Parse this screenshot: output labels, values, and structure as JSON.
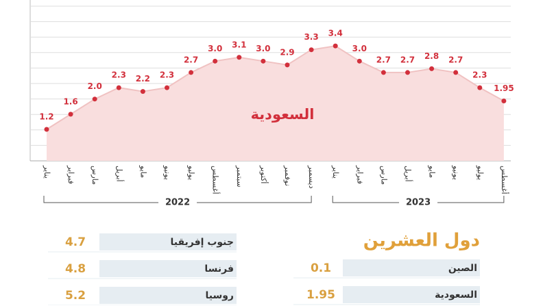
{
  "chart_data": {
    "type": "area",
    "series_name": "السعودية",
    "color": "#d2303c",
    "fill": "#f9dede",
    "line_color": "#f0c2c2",
    "ylim": [
      0.37,
      4.45
    ],
    "groups": [
      {
        "name": "2022",
        "categories": [
          "يناير",
          "فبراير",
          "مارس",
          "أبريل",
          "مايو",
          "يونيو",
          "يوليو",
          "أغسطس",
          "سبتمبر",
          "أكتوبر",
          "نوفمبر",
          "ديسمبر"
        ],
        "values": [
          1.2,
          1.6,
          2.0,
          2.3,
          2.2,
          2.3,
          2.7,
          3.0,
          3.1,
          3.0,
          2.9,
          3.3
        ],
        "value_labels": [
          "1.2",
          "1.6",
          "2.0",
          "2.3",
          "2.2",
          "2.3",
          "2.7",
          "3.0",
          "3.1",
          "3.0",
          "2.9",
          "3.3"
        ]
      },
      {
        "name": "2023",
        "categories": [
          "يناير",
          "فبراير",
          "مارس",
          "أبريل",
          "مايو",
          "يونيو",
          "يوليو",
          "أغسطس"
        ],
        "values": [
          3.4,
          3.0,
          2.7,
          2.7,
          2.8,
          2.7,
          2.3,
          1.95
        ],
        "value_labels": [
          "3.4",
          "3.0",
          "2.7",
          "2.7",
          "2.8",
          "2.7",
          "2.3",
          "1.95"
        ]
      }
    ]
  },
  "g20": {
    "title": "دول العشرين",
    "right_table": [
      {
        "name": "الصين",
        "value": 0.1
      },
      {
        "name": "السعودية",
        "value": 1.95
      }
    ],
    "left_table": [
      {
        "name": "جنوب إفريقيا",
        "value": 4.7
      },
      {
        "name": "فرنسا",
        "value": 4.8
      },
      {
        "name": "روسيا",
        "value": 5.2
      }
    ]
  }
}
